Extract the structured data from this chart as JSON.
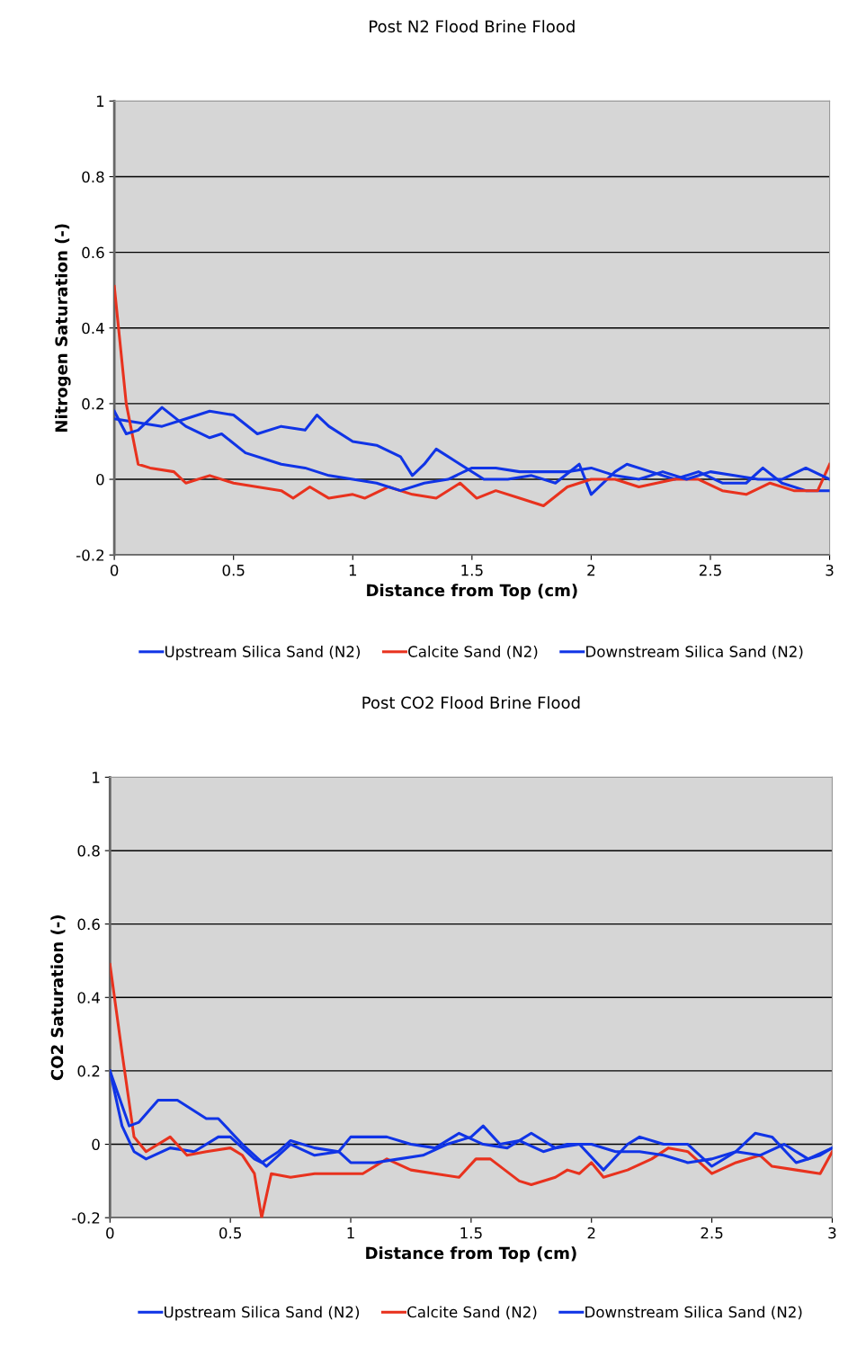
{
  "chart_data": [
    {
      "type": "line",
      "title": "Post N2 Flood Brine Flood",
      "xlabel": "Distance from Top (cm)",
      "ylabel": "Nitrogen Saturation (-)",
      "xlim": [
        0,
        3
      ],
      "xticks": [
        0,
        0.5,
        1,
        1.5,
        2,
        2.5,
        3
      ],
      "ylim": [
        -0.2,
        1
      ],
      "yticks": [
        -0.2,
        0,
        0.2,
        0.4,
        0.6,
        0.8,
        1
      ],
      "grid": "y",
      "legend": "bottom",
      "series": [
        {
          "name": "Upstream Silica Sand (N2)",
          "color": "#1034e6",
          "x": [
            0,
            0.1,
            0.2,
            0.3,
            0.4,
            0.5,
            0.6,
            0.7,
            0.8,
            0.85,
            0.9,
            1.0,
            1.1,
            1.2,
            1.25,
            1.3,
            1.35,
            1.45,
            1.55,
            1.65,
            1.75,
            1.85,
            1.95,
            2.0,
            2.1,
            2.15,
            2.25,
            2.35,
            2.45,
            2.55,
            2.65,
            2.72,
            2.8,
            2.9,
            3.0
          ],
          "values": [
            0.16,
            0.15,
            0.14,
            0.16,
            0.18,
            0.17,
            0.12,
            0.14,
            0.13,
            0.17,
            0.14,
            0.1,
            0.09,
            0.06,
            0.01,
            0.04,
            0.08,
            0.04,
            0.0,
            0.0,
            0.01,
            -0.01,
            0.04,
            -0.04,
            0.02,
            0.04,
            0.02,
            0.0,
            0.02,
            -0.01,
            -0.01,
            0.03,
            -0.01,
            -0.03,
            -0.03
          ]
        },
        {
          "name": "Calcite Sand (N2)",
          "color": "#e8321e",
          "x": [
            0,
            0.05,
            0.1,
            0.15,
            0.25,
            0.3,
            0.4,
            0.5,
            0.6,
            0.7,
            0.75,
            0.82,
            0.9,
            1.0,
            1.05,
            1.15,
            1.25,
            1.35,
            1.45,
            1.52,
            1.6,
            1.7,
            1.8,
            1.9,
            2.0,
            2.1,
            2.2,
            2.35,
            2.45,
            2.55,
            2.65,
            2.75,
            2.85,
            2.95,
            3.0
          ],
          "values": [
            0.51,
            0.2,
            0.04,
            0.03,
            0.02,
            -0.01,
            0.01,
            -0.01,
            -0.02,
            -0.03,
            -0.05,
            -0.02,
            -0.05,
            -0.04,
            -0.05,
            -0.02,
            -0.04,
            -0.05,
            -0.01,
            -0.05,
            -0.03,
            -0.05,
            -0.07,
            -0.02,
            0.0,
            0.0,
            -0.02,
            0.0,
            0.0,
            -0.03,
            -0.04,
            -0.01,
            -0.03,
            -0.03,
            0.04
          ]
        },
        {
          "name": "Downstream Silica Sand (N2)",
          "color": "#1034e6",
          "x": [
            0,
            0.05,
            0.1,
            0.2,
            0.3,
            0.4,
            0.45,
            0.55,
            0.7,
            0.8,
            0.9,
            1.0,
            1.1,
            1.2,
            1.3,
            1.4,
            1.5,
            1.6,
            1.7,
            1.8,
            1.9,
            2.0,
            2.1,
            2.2,
            2.3,
            2.4,
            2.5,
            2.6,
            2.7,
            2.8,
            2.9,
            3.0
          ],
          "values": [
            0.18,
            0.12,
            0.13,
            0.19,
            0.14,
            0.11,
            0.12,
            0.07,
            0.04,
            0.03,
            0.01,
            0.0,
            -0.01,
            -0.03,
            -0.01,
            0.0,
            0.03,
            0.03,
            0.02,
            0.02,
            0.02,
            0.03,
            0.01,
            0.0,
            0.02,
            0.0,
            0.02,
            0.01,
            0.0,
            0.0,
            0.03,
            0.0
          ]
        }
      ]
    },
    {
      "type": "line",
      "title": "Post CO2 Flood Brine Flood",
      "xlabel": "Distance from Top (cm)",
      "ylabel": "CO2 Saturation (-)",
      "xlim": [
        0,
        3
      ],
      "xticks": [
        0,
        0.5,
        1,
        1.5,
        2,
        2.5,
        3
      ],
      "ylim": [
        -0.2,
        1
      ],
      "yticks": [
        -0.2,
        0,
        0.2,
        0.4,
        0.6,
        0.8,
        1
      ],
      "grid": "y",
      "legend": "bottom",
      "series": [
        {
          "name": "Upstream Silica Sand (N2)",
          "color": "#1034e6",
          "x": [
            0,
            0.05,
            0.1,
            0.15,
            0.25,
            0.35,
            0.45,
            0.5,
            0.6,
            0.63,
            0.7,
            0.75,
            0.85,
            0.95,
            1.0,
            1.15,
            1.25,
            1.35,
            1.45,
            1.55,
            1.65,
            1.75,
            1.85,
            1.95,
            2.05,
            2.15,
            2.2,
            2.3,
            2.4,
            2.5,
            2.6,
            2.68,
            2.75,
            2.85,
            2.95,
            3.0
          ],
          "values": [
            0.2,
            0.05,
            -0.02,
            -0.04,
            -0.01,
            -0.02,
            0.02,
            0.02,
            -0.04,
            -0.05,
            -0.02,
            0.01,
            -0.01,
            -0.02,
            0.02,
            0.02,
            0.0,
            -0.01,
            0.03,
            0.0,
            -0.01,
            0.03,
            -0.01,
            0.0,
            -0.07,
            0.0,
            0.02,
            0.0,
            0.0,
            -0.06,
            -0.02,
            0.03,
            0.02,
            -0.05,
            -0.03,
            -0.01
          ]
        },
        {
          "name": "Calcite Sand (N2)",
          "color": "#e8321e",
          "x": [
            0,
            0.05,
            0.1,
            0.15,
            0.2,
            0.25,
            0.32,
            0.4,
            0.5,
            0.55,
            0.6,
            0.63,
            0.67,
            0.75,
            0.85,
            0.95,
            1.05,
            1.15,
            1.25,
            1.35,
            1.45,
            1.52,
            1.58,
            1.7,
            1.75,
            1.85,
            1.9,
            1.95,
            2.0,
            2.05,
            2.15,
            2.25,
            2.32,
            2.4,
            2.5,
            2.6,
            2.7,
            2.75,
            2.85,
            2.95,
            3.0
          ],
          "values": [
            0.49,
            0.25,
            0.02,
            -0.02,
            0.0,
            0.02,
            -0.03,
            -0.02,
            -0.01,
            -0.03,
            -0.08,
            -0.2,
            -0.08,
            -0.09,
            -0.08,
            -0.08,
            -0.08,
            -0.04,
            -0.07,
            -0.08,
            -0.09,
            -0.04,
            -0.04,
            -0.1,
            -0.11,
            -0.09,
            -0.07,
            -0.08,
            -0.05,
            -0.09,
            -0.07,
            -0.04,
            -0.01,
            -0.02,
            -0.08,
            -0.05,
            -0.03,
            -0.06,
            -0.07,
            -0.08,
            -0.02
          ]
        },
        {
          "name": "Downstream Silica Sand (N2)",
          "color": "#1034e6",
          "x": [
            0,
            0.08,
            0.12,
            0.2,
            0.28,
            0.4,
            0.45,
            0.55,
            0.65,
            0.75,
            0.85,
            0.95,
            1.0,
            1.1,
            1.2,
            1.3,
            1.4,
            1.5,
            1.55,
            1.62,
            1.7,
            1.8,
            1.9,
            2.0,
            2.1,
            2.2,
            2.3,
            2.4,
            2.5,
            2.6,
            2.7,
            2.8,
            2.9,
            3.0
          ],
          "values": [
            0.2,
            0.05,
            0.06,
            0.12,
            0.12,
            0.07,
            0.07,
            0.0,
            -0.06,
            0.0,
            -0.03,
            -0.02,
            -0.05,
            -0.05,
            -0.04,
            -0.03,
            0.0,
            0.02,
            0.05,
            0.0,
            0.01,
            -0.02,
            0.0,
            0.0,
            -0.02,
            -0.02,
            -0.03,
            -0.05,
            -0.04,
            -0.02,
            -0.03,
            0.0,
            -0.04,
            -0.01
          ]
        }
      ]
    }
  ]
}
